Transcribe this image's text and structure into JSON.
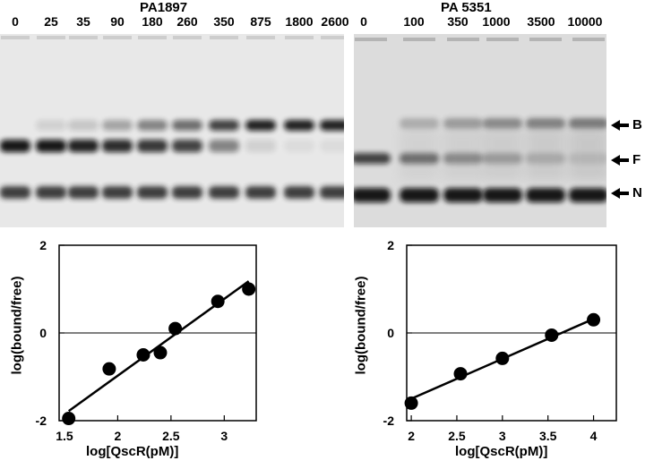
{
  "left_panel": {
    "title": "PA1897",
    "lanes": [
      "0",
      "25",
      "35",
      "90",
      "180",
      "260",
      "350",
      "875",
      "1800",
      "2600"
    ]
  },
  "right_panel": {
    "title": "PA 5351",
    "lanes": [
      "0",
      "100",
      "350",
      "1000",
      "3500",
      "10000"
    ]
  },
  "bands": [
    "B",
    "F",
    "N"
  ],
  "chart_data": [
    {
      "type": "scatter",
      "title": "",
      "xlabel": "log[QscR(pM)]",
      "ylabel": "log(bound/free)",
      "xlim": [
        1.45,
        3.3
      ],
      "ylim": [
        -2,
        2
      ],
      "xticks": [
        "1.5",
        "2",
        "2.5",
        "3"
      ],
      "yticks": [
        "2",
        "0",
        "-2"
      ],
      "points": [
        {
          "x": 1.54,
          "y": -1.95
        },
        {
          "x": 1.92,
          "y": -0.82
        },
        {
          "x": 2.24,
          "y": -0.5
        },
        {
          "x": 2.4,
          "y": -0.45
        },
        {
          "x": 2.54,
          "y": 0.1
        },
        {
          "x": 2.94,
          "y": 0.72
        },
        {
          "x": 3.23,
          "y": 1.0
        }
      ],
      "fit_line": {
        "x": [
          1.54,
          3.23
        ],
        "y": [
          -1.78,
          1.18
        ]
      },
      "reference_line_y": 0
    },
    {
      "type": "scatter",
      "title": "",
      "xlabel": "log[QscR(pM)]",
      "ylabel": "log(bound/free)",
      "xlim": [
        1.95,
        4.25
      ],
      "ylim": [
        -2,
        2
      ],
      "xticks": [
        "2",
        "2.5",
        "3",
        "3.5",
        "4"
      ],
      "yticks": [
        "2",
        "0",
        "-2"
      ],
      "points": [
        {
          "x": 2.0,
          "y": -1.6
        },
        {
          "x": 2.54,
          "y": -0.93
        },
        {
          "x": 3.0,
          "y": -0.58
        },
        {
          "x": 3.54,
          "y": -0.05
        },
        {
          "x": 4.0,
          "y": 0.3
        }
      ],
      "fit_line": {
        "x": [
          2.0,
          4.0
        ],
        "y": [
          -1.5,
          0.32
        ]
      },
      "reference_line_y": 0
    }
  ]
}
